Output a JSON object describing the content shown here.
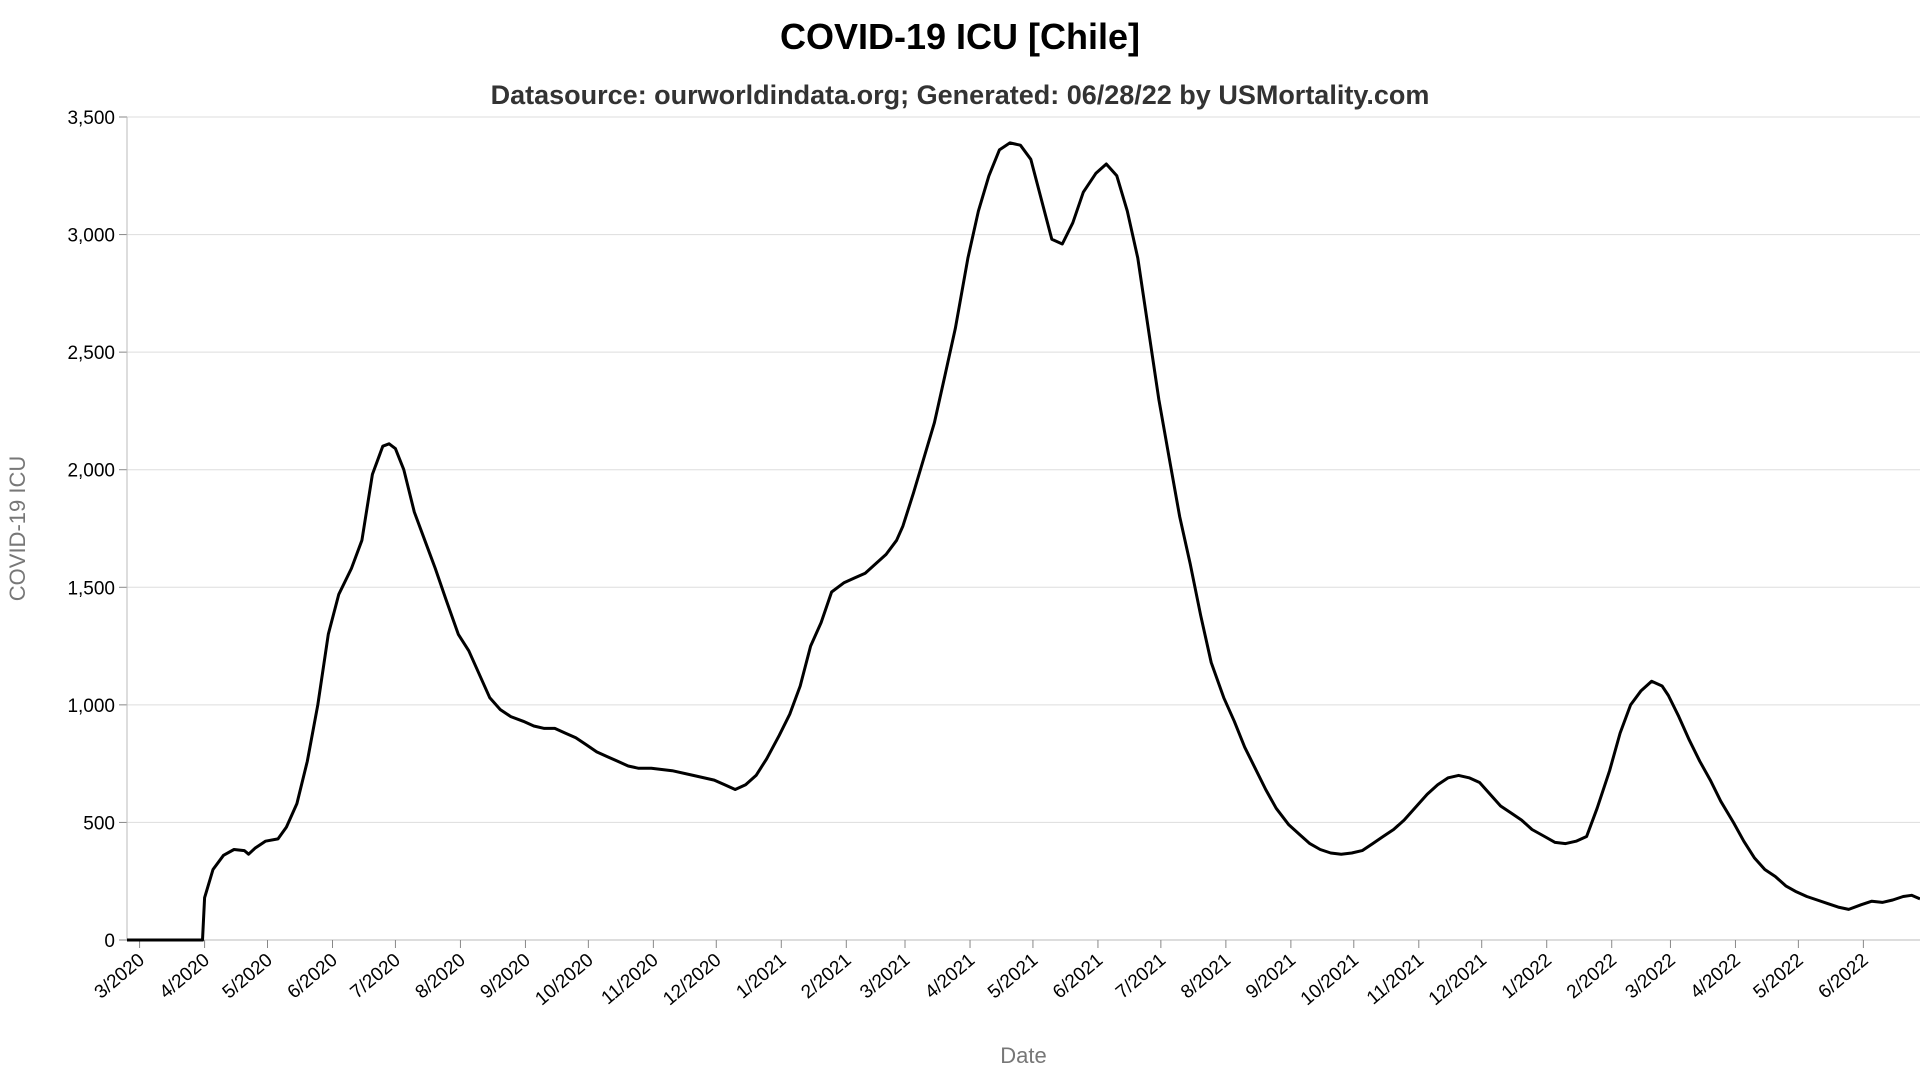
{
  "chart_data": {
    "type": "line",
    "title": "COVID-19 ICU [Chile]",
    "subtitle": "Datasource: ourworldindata.org; Generated: 06/28/22 by USMortality.com",
    "xlabel": "Date",
    "ylabel": "COVID-19 ICU",
    "ylim": [
      0,
      3500
    ],
    "y_ticks": [
      0,
      500,
      1000,
      1500,
      2000,
      2500,
      3000,
      3500
    ],
    "y_tick_labels": [
      "0",
      "500",
      "1,000",
      "1,500",
      "2,000",
      "2,500",
      "3,000",
      "3,500"
    ],
    "x_range": [
      "2020-02-24",
      "2022-06-28"
    ],
    "x_ticks": [
      "2020-03-01",
      "2020-04-01",
      "2020-05-01",
      "2020-06-01",
      "2020-07-01",
      "2020-08-01",
      "2020-09-01",
      "2020-10-01",
      "2020-11-01",
      "2020-12-01",
      "2021-01-01",
      "2021-02-01",
      "2021-03-01",
      "2021-04-01",
      "2021-05-01",
      "2021-06-01",
      "2021-07-01",
      "2021-08-01",
      "2021-09-01",
      "2021-10-01",
      "2021-11-01",
      "2021-12-01",
      "2022-01-01",
      "2022-02-01",
      "2022-03-01",
      "2022-04-01",
      "2022-05-01",
      "2022-06-01"
    ],
    "x_tick_labels": [
      "3/2020",
      "4/2020",
      "5/2020",
      "6/2020",
      "7/2020",
      "8/2020",
      "9/2020",
      "10/2020",
      "11/2020",
      "12/2020",
      "1/2021",
      "2/2021",
      "3/2021",
      "4/2021",
      "5/2021",
      "6/2021",
      "7/2021",
      "8/2021",
      "9/2021",
      "10/2021",
      "11/2021",
      "12/2021",
      "1/2022",
      "2/2022",
      "3/2022",
      "4/2022",
      "5/2022",
      "6/2022"
    ],
    "grid": true,
    "color": "#000000",
    "series": [
      {
        "values": [
          [
            "2020-02-24",
            0
          ],
          [
            "2020-03-31",
            0
          ],
          [
            "2020-04-01",
            180
          ],
          [
            "2020-04-05",
            300
          ],
          [
            "2020-04-10",
            360
          ],
          [
            "2020-04-15",
            385
          ],
          [
            "2020-04-20",
            380
          ],
          [
            "2020-04-22",
            365
          ],
          [
            "2020-04-25",
            390
          ],
          [
            "2020-04-30",
            420
          ],
          [
            "2020-05-06",
            430
          ],
          [
            "2020-05-10",
            480
          ],
          [
            "2020-05-15",
            580
          ],
          [
            "2020-05-20",
            760
          ],
          [
            "2020-05-25",
            1000
          ],
          [
            "2020-05-30",
            1300
          ],
          [
            "2020-06-04",
            1470
          ],
          [
            "2020-06-10",
            1580
          ],
          [
            "2020-06-15",
            1700
          ],
          [
            "2020-06-20",
            1980
          ],
          [
            "2020-06-25",
            2100
          ],
          [
            "2020-06-28",
            2110
          ],
          [
            "2020-07-01",
            2090
          ],
          [
            "2020-07-05",
            2000
          ],
          [
            "2020-07-10",
            1820
          ],
          [
            "2020-07-15",
            1700
          ],
          [
            "2020-07-20",
            1580
          ],
          [
            "2020-07-25",
            1450
          ],
          [
            "2020-07-31",
            1300
          ],
          [
            "2020-08-05",
            1230
          ],
          [
            "2020-08-10",
            1130
          ],
          [
            "2020-08-15",
            1030
          ],
          [
            "2020-08-20",
            980
          ],
          [
            "2020-08-25",
            950
          ],
          [
            "2020-08-31",
            930
          ],
          [
            "2020-09-05",
            910
          ],
          [
            "2020-09-10",
            900
          ],
          [
            "2020-09-15",
            900
          ],
          [
            "2020-09-20",
            880
          ],
          [
            "2020-09-25",
            860
          ],
          [
            "2020-09-30",
            830
          ],
          [
            "2020-10-05",
            800
          ],
          [
            "2020-10-10",
            780
          ],
          [
            "2020-10-15",
            760
          ],
          [
            "2020-10-20",
            740
          ],
          [
            "2020-10-25",
            730
          ],
          [
            "2020-10-31",
            730
          ],
          [
            "2020-11-10",
            720
          ],
          [
            "2020-11-20",
            700
          ],
          [
            "2020-11-30",
            680
          ],
          [
            "2020-12-05",
            660
          ],
          [
            "2020-12-10",
            640
          ],
          [
            "2020-12-15",
            660
          ],
          [
            "2020-12-20",
            700
          ],
          [
            "2020-12-25",
            770
          ],
          [
            "2020-12-31",
            870
          ],
          [
            "2021-01-05",
            960
          ],
          [
            "2021-01-10",
            1080
          ],
          [
            "2021-01-15",
            1250
          ],
          [
            "2021-01-20",
            1350
          ],
          [
            "2021-01-25",
            1480
          ],
          [
            "2021-01-31",
            1520
          ],
          [
            "2021-02-05",
            1540
          ],
          [
            "2021-02-10",
            1560
          ],
          [
            "2021-02-15",
            1600
          ],
          [
            "2021-02-20",
            1640
          ],
          [
            "2021-02-25",
            1700
          ],
          [
            "2021-02-28",
            1760
          ],
          [
            "2021-03-05",
            1900
          ],
          [
            "2021-03-10",
            2050
          ],
          [
            "2021-03-15",
            2200
          ],
          [
            "2021-03-20",
            2400
          ],
          [
            "2021-03-25",
            2600
          ],
          [
            "2021-03-31",
            2900
          ],
          [
            "2021-04-05",
            3100
          ],
          [
            "2021-04-10",
            3250
          ],
          [
            "2021-04-15",
            3360
          ],
          [
            "2021-04-20",
            3390
          ],
          [
            "2021-04-25",
            3380
          ],
          [
            "2021-04-30",
            3320
          ],
          [
            "2021-05-05",
            3150
          ],
          [
            "2021-05-10",
            2980
          ],
          [
            "2021-05-15",
            2960
          ],
          [
            "2021-05-20",
            3050
          ],
          [
            "2021-05-25",
            3180
          ],
          [
            "2021-05-31",
            3260
          ],
          [
            "2021-06-05",
            3300
          ],
          [
            "2021-06-10",
            3250
          ],
          [
            "2021-06-15",
            3100
          ],
          [
            "2021-06-20",
            2900
          ],
          [
            "2021-06-25",
            2600
          ],
          [
            "2021-06-30",
            2300
          ],
          [
            "2021-07-05",
            2050
          ],
          [
            "2021-07-10",
            1800
          ],
          [
            "2021-07-15",
            1600
          ],
          [
            "2021-07-20",
            1380
          ],
          [
            "2021-07-25",
            1180
          ],
          [
            "2021-07-31",
            1030
          ],
          [
            "2021-08-05",
            930
          ],
          [
            "2021-08-10",
            820
          ],
          [
            "2021-08-15",
            730
          ],
          [
            "2021-08-20",
            640
          ],
          [
            "2021-08-25",
            560
          ],
          [
            "2021-08-31",
            490
          ],
          [
            "2021-09-05",
            450
          ],
          [
            "2021-09-10",
            410
          ],
          [
            "2021-09-15",
            385
          ],
          [
            "2021-09-20",
            370
          ],
          [
            "2021-09-25",
            365
          ],
          [
            "2021-09-30",
            370
          ],
          [
            "2021-10-05",
            380
          ],
          [
            "2021-10-10",
            410
          ],
          [
            "2021-10-15",
            440
          ],
          [
            "2021-10-20",
            470
          ],
          [
            "2021-10-25",
            510
          ],
          [
            "2021-10-31",
            570
          ],
          [
            "2021-11-05",
            620
          ],
          [
            "2021-11-10",
            660
          ],
          [
            "2021-11-15",
            690
          ],
          [
            "2021-11-20",
            700
          ],
          [
            "2021-11-25",
            690
          ],
          [
            "2021-11-30",
            670
          ],
          [
            "2021-12-05",
            620
          ],
          [
            "2021-12-10",
            570
          ],
          [
            "2021-12-15",
            540
          ],
          [
            "2021-12-20",
            510
          ],
          [
            "2021-12-25",
            470
          ],
          [
            "2021-12-31",
            440
          ],
          [
            "2022-01-05",
            415
          ],
          [
            "2022-01-10",
            410
          ],
          [
            "2022-01-15",
            420
          ],
          [
            "2022-01-20",
            440
          ],
          [
            "2022-01-25",
            560
          ],
          [
            "2022-01-31",
            720
          ],
          [
            "2022-02-05",
            880
          ],
          [
            "2022-02-10",
            1000
          ],
          [
            "2022-02-15",
            1060
          ],
          [
            "2022-02-20",
            1100
          ],
          [
            "2022-02-25",
            1080
          ],
          [
            "2022-02-28",
            1040
          ],
          [
            "2022-03-05",
            950
          ],
          [
            "2022-03-10",
            850
          ],
          [
            "2022-03-15",
            760
          ],
          [
            "2022-03-20",
            680
          ],
          [
            "2022-03-25",
            590
          ],
          [
            "2022-03-31",
            500
          ],
          [
            "2022-04-05",
            420
          ],
          [
            "2022-04-10",
            350
          ],
          [
            "2022-04-15",
            300
          ],
          [
            "2022-04-20",
            270
          ],
          [
            "2022-04-25",
            230
          ],
          [
            "2022-04-30",
            205
          ],
          [
            "2022-05-05",
            185
          ],
          [
            "2022-05-10",
            170
          ],
          [
            "2022-05-15",
            155
          ],
          [
            "2022-05-20",
            140
          ],
          [
            "2022-05-25",
            130
          ],
          [
            "2022-05-31",
            150
          ],
          [
            "2022-06-05",
            165
          ],
          [
            "2022-06-10",
            160
          ],
          [
            "2022-06-15",
            170
          ],
          [
            "2022-06-20",
            185
          ],
          [
            "2022-06-24",
            190
          ],
          [
            "2022-06-28",
            175
          ]
        ]
      }
    ]
  }
}
